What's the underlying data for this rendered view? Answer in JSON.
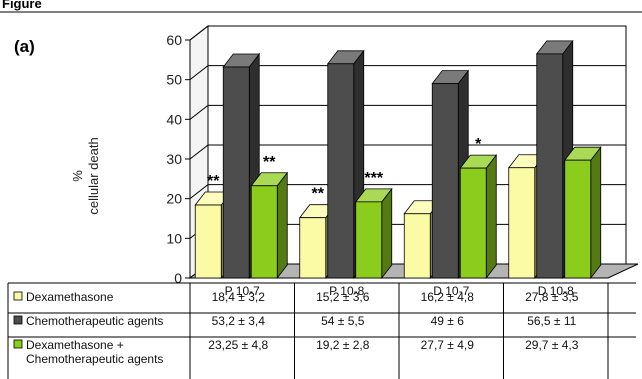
{
  "figure": {
    "top_label": "Figure",
    "panel_label": "(a)"
  },
  "colors": {
    "dex": "#fbfba6",
    "chemo": "#4d4d4d",
    "combo": "#8ccc1c",
    "floor": "#b4b4b4",
    "wall": "#ffffff"
  },
  "chart_data": {
    "type": "bar",
    "title": "",
    "xlabel": "",
    "ylabel_lines": [
      "%",
      "cellular death"
    ],
    "ylim": [
      0,
      60
    ],
    "yticks": [
      0,
      10,
      20,
      30,
      40,
      50,
      60
    ],
    "grid": true,
    "categories": [
      "P 10-7",
      "P 10-8",
      "D 10-7",
      "D 10-8"
    ],
    "series": [
      {
        "name": "Dexamethasone",
        "legend_lines": [
          "Dexamethasone"
        ],
        "values": [
          18.4,
          15.2,
          16.2,
          27.8
        ],
        "table_cells": [
          "18,4  ± 3,2",
          "15,2  ± 3,6",
          "16,2  ± 4,8",
          "27,8 ± 3,5"
        ]
      },
      {
        "name": "Chemotherapeutic agents",
        "legend_lines": [
          "Chemotherapeutic agents"
        ],
        "values": [
          53.2,
          54,
          49,
          56.5
        ],
        "table_cells": [
          "53,2  ± 3,4",
          "54  ± 5,5",
          "49  ± 6",
          "56,5 ± 11"
        ]
      },
      {
        "name": "Dexamethasone + Chemotherapeutic agents",
        "legend_lines": [
          "Dexamethasone +",
          "Chemotherapeutic agents"
        ],
        "values": [
          23.25,
          19.2,
          27.7,
          29.7
        ],
        "table_cells": [
          "23,25  ± 4,8",
          "19,2 ± 2,8",
          "27,7 ± 4,9",
          "29,7 ± 4,3"
        ]
      }
    ],
    "annotations": [
      {
        "category": 0,
        "series": 0,
        "text": "**"
      },
      {
        "category": 0,
        "series": 2,
        "text": "**"
      },
      {
        "category": 1,
        "series": 0,
        "text": "**"
      },
      {
        "category": 1,
        "series": 2,
        "text": "***"
      },
      {
        "category": 2,
        "series": 2,
        "text": "*"
      }
    ]
  }
}
